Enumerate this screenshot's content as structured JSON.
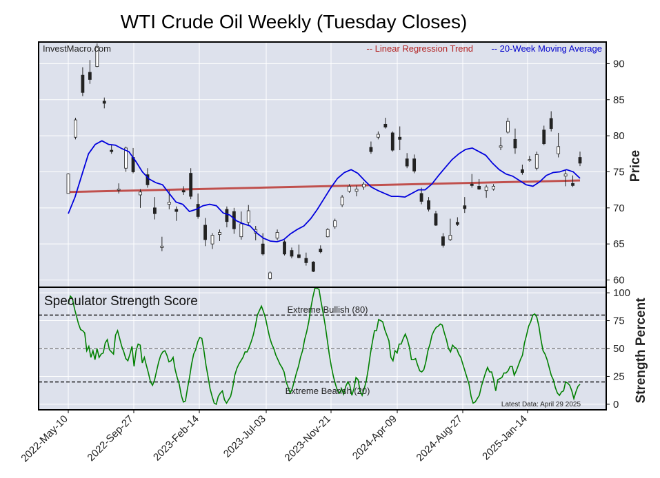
{
  "chart_data": [
    {
      "type": "candlestick",
      "title": "WTI Crude Oil Weekly (Tuesday Closes)",
      "watermark": "InvestMacro.com",
      "ylabel": "Price",
      "ylim": [
        59,
        93
      ],
      "yticks": [
        60,
        65,
        70,
        75,
        80,
        85,
        90
      ],
      "grid": true,
      "x_tick_labels": [
        "2022-May-10",
        "2022-Sep-27",
        "2023-Feb-14",
        "2023-Jul-03",
        "2023-Nov-21",
        "2024-Apr-09",
        "2024-Aug-27",
        "2025-Jan-14"
      ],
      "legend": [
        {
          "label": "-- Linear Regression Trend",
          "color": "#b22222"
        },
        {
          "label": "-- 20-Week Moving Average",
          "color": "#0000cc"
        }
      ],
      "legend_position": "top-right",
      "series_colors": {
        "regression": "#c0504d",
        "moving_average": "#0000dd",
        "up": "#ffffff",
        "down": "#222222"
      },
      "regression": {
        "start": 72.2,
        "end": 73.8
      },
      "moving_average": [
        69.2,
        71.5,
        74.5,
        77.5,
        78.8,
        79.3,
        78.8,
        78.7,
        78.2,
        77.8,
        76.5,
        75.0,
        74.0,
        73.5,
        73.2,
        72.0,
        70.8,
        70.5,
        69.5,
        69.8,
        70.3,
        70.5,
        70.3,
        69.3,
        69.0,
        68.2,
        67.8,
        67.5,
        66.5,
        65.8,
        65.4,
        65.3,
        65.6,
        66.4,
        67.0,
        67.5,
        68.5,
        69.8,
        71.3,
        72.8,
        74.1,
        74.9,
        75.3,
        74.8,
        73.8,
        72.9,
        72.4,
        72.0,
        71.6,
        71.6,
        71.5,
        72.0,
        72.5,
        72.5,
        73.3,
        74.5,
        75.6,
        76.7,
        77.5,
        78.1,
        78.3,
        77.8,
        77.3,
        76.2,
        75.3,
        74.7,
        74.4,
        73.8,
        73.2,
        73.0,
        73.6,
        74.5,
        74.9,
        75.0,
        75.3,
        75.0,
        74.1
      ],
      "candles": [
        {
          "o": 72.0,
          "h": 74.8,
          "l": 72.0,
          "c": 74.7
        },
        {
          "o": 79.8,
          "h": 82.5,
          "l": 79.5,
          "c": 82.2
        },
        {
          "o": 88.4,
          "h": 89.5,
          "l": 85.5,
          "c": 86.0
        },
        {
          "o": 88.8,
          "h": 90.5,
          "l": 87.2,
          "c": 87.8
        },
        {
          "o": 89.6,
          "h": 92.8,
          "l": 89.5,
          "c": 92.4
        },
        {
          "o": 84.8,
          "h": 85.3,
          "l": 83.8,
          "c": 84.5
        },
        {
          "o": 78.0,
          "h": 78.8,
          "l": 77.5,
          "c": 77.8
        },
        {
          "o": 72.5,
          "h": 73.4,
          "l": 72.0,
          "c": 72.6
        },
        {
          "o": 75.5,
          "h": 78.5,
          "l": 75.0,
          "c": 78.3
        },
        {
          "o": 77.0,
          "h": 78.3,
          "l": 74.8,
          "c": 75.0
        },
        {
          "o": 71.8,
          "h": 72.6,
          "l": 70.0,
          "c": 72.2
        },
        {
          "o": 74.6,
          "h": 75.5,
          "l": 72.8,
          "c": 73.2
        },
        {
          "o": 70.0,
          "h": 71.5,
          "l": 68.4,
          "c": 69.2
        },
        {
          "o": 64.5,
          "h": 66.0,
          "l": 64.0,
          "c": 64.7
        },
        {
          "o": 70.5,
          "h": 72.4,
          "l": 69.8,
          "c": 70.8
        },
        {
          "o": 69.8,
          "h": 70.2,
          "l": 68.2,
          "c": 69.5
        },
        {
          "o": 72.4,
          "h": 73.0,
          "l": 71.8,
          "c": 72.2
        },
        {
          "o": 74.8,
          "h": 75.5,
          "l": 71.2,
          "c": 71.6
        },
        {
          "o": 70.5,
          "h": 72.0,
          "l": 68.5,
          "c": 68.8
        },
        {
          "o": 67.6,
          "h": 68.6,
          "l": 64.7,
          "c": 65.6
        },
        {
          "o": 65.0,
          "h": 66.5,
          "l": 64.3,
          "c": 66.2
        },
        {
          "o": 66.3,
          "h": 67.0,
          "l": 65.4,
          "c": 66.6
        },
        {
          "o": 69.8,
          "h": 70.2,
          "l": 67.3,
          "c": 68.1
        },
        {
          "o": 69.5,
          "h": 70.0,
          "l": 66.4,
          "c": 67.1
        },
        {
          "o": 66.0,
          "h": 69.5,
          "l": 65.6,
          "c": 67.8
        },
        {
          "o": 68.0,
          "h": 70.4,
          "l": 67.5,
          "c": 69.6
        },
        {
          "o": 66.5,
          "h": 67.5,
          "l": 65.5,
          "c": 67.0
        },
        {
          "o": 65.0,
          "h": 66.5,
          "l": 63.4,
          "c": 63.6
        },
        {
          "o": 60.2,
          "h": 61.2,
          "l": 60.0,
          "c": 61.0
        },
        {
          "o": 65.8,
          "h": 67.0,
          "l": 65.5,
          "c": 66.6
        },
        {
          "o": 65.3,
          "h": 65.5,
          "l": 63.4,
          "c": 63.6
        },
        {
          "o": 64.1,
          "h": 64.5,
          "l": 63.0,
          "c": 63.3
        },
        {
          "o": 63.5,
          "h": 64.9,
          "l": 63.0,
          "c": 63.1
        },
        {
          "o": 63.0,
          "h": 63.8,
          "l": 62.0,
          "c": 62.4
        },
        {
          "o": 62.5,
          "h": 62.6,
          "l": 61.1,
          "c": 61.2
        },
        {
          "o": 64.3,
          "h": 64.8,
          "l": 63.7,
          "c": 63.9
        },
        {
          "o": 66.0,
          "h": 67.2,
          "l": 65.9,
          "c": 67.0
        },
        {
          "o": 67.4,
          "h": 68.5,
          "l": 67.1,
          "c": 68.2
        },
        {
          "o": 70.4,
          "h": 71.8,
          "l": 70.1,
          "c": 71.5
        },
        {
          "o": 72.3,
          "h": 73.3,
          "l": 72.1,
          "c": 73.0
        },
        {
          "o": 72.3,
          "h": 73.1,
          "l": 71.6,
          "c": 72.6
        },
        {
          "o": 72.9,
          "h": 73.6,
          "l": 72.5,
          "c": 73.3
        },
        {
          "o": 78.4,
          "h": 79.2,
          "l": 77.5,
          "c": 77.8
        },
        {
          "o": 79.8,
          "h": 80.6,
          "l": 79.5,
          "c": 80.2
        },
        {
          "o": 81.6,
          "h": 82.5,
          "l": 81.0,
          "c": 81.2
        },
        {
          "o": 80.4,
          "h": 80.6,
          "l": 77.8,
          "c": 78.0
        },
        {
          "o": 79.8,
          "h": 81.3,
          "l": 78.0,
          "c": 79.5
        },
        {
          "o": 76.8,
          "h": 77.6,
          "l": 75.5,
          "c": 75.8
        },
        {
          "o": 76.8,
          "h": 77.4,
          "l": 74.8,
          "c": 75.1
        },
        {
          "o": 72.0,
          "h": 72.8,
          "l": 70.5,
          "c": 70.9
        },
        {
          "o": 71.0,
          "h": 71.5,
          "l": 69.5,
          "c": 69.8
        },
        {
          "o": 69.2,
          "h": 69.6,
          "l": 67.5,
          "c": 67.6
        },
        {
          "o": 66.0,
          "h": 66.5,
          "l": 64.5,
          "c": 64.8
        },
        {
          "o": 65.6,
          "h": 68.5,
          "l": 65.4,
          "c": 66.2
        },
        {
          "o": 68.0,
          "h": 68.7,
          "l": 67.5,
          "c": 67.7
        },
        {
          "o": 70.3,
          "h": 71.5,
          "l": 69.3,
          "c": 69.9
        },
        {
          "o": 73.3,
          "h": 74.7,
          "l": 72.8,
          "c": 73.1
        },
        {
          "o": 73.0,
          "h": 74.0,
          "l": 72.5,
          "c": 72.6
        },
        {
          "o": 72.4,
          "h": 73.2,
          "l": 71.4,
          "c": 72.9
        },
        {
          "o": 72.6,
          "h": 73.3,
          "l": 72.4,
          "c": 73.0
        },
        {
          "o": 78.4,
          "h": 79.8,
          "l": 78.0,
          "c": 78.6
        },
        {
          "o": 80.5,
          "h": 82.5,
          "l": 80.3,
          "c": 82.0
        },
        {
          "o": 79.5,
          "h": 81.0,
          "l": 77.5,
          "c": 78.3
        },
        {
          "o": 75.3,
          "h": 76.0,
          "l": 74.6,
          "c": 74.9
        },
        {
          "o": 76.7,
          "h": 77.2,
          "l": 76.4,
          "c": 76.7
        },
        {
          "o": 75.5,
          "h": 77.8,
          "l": 75.2,
          "c": 77.4
        },
        {
          "o": 80.8,
          "h": 81.4,
          "l": 78.7,
          "c": 78.9
        },
        {
          "o": 82.4,
          "h": 83.4,
          "l": 80.6,
          "c": 81.0
        },
        {
          "o": 77.5,
          "h": 80.4,
          "l": 77.0,
          "c": 78.5
        },
        {
          "o": 74.4,
          "h": 75.3,
          "l": 73.0,
          "c": 74.7
        },
        {
          "o": 73.4,
          "h": 74.5,
          "l": 72.9,
          "c": 73.1
        },
        {
          "o": 77.0,
          "h": 77.8,
          "l": 75.8,
          "c": 76.2
        }
      ]
    },
    {
      "type": "line",
      "title": "Speculator Strength Score",
      "ylabel": "Strength Percent",
      "ylim": [
        -5,
        105
      ],
      "yticks": [
        0,
        25,
        50,
        75,
        100
      ],
      "grid": true,
      "line_color": "#008000",
      "reference_lines": [
        {
          "label": "Extreme Bullish (80)",
          "value": 80
        },
        {
          "label": "Extreme Bearish (20)",
          "value": 20
        }
      ],
      "data_note": "Latest Data: April 29 2025",
      "values": [
        90,
        97,
        95,
        86,
        79,
        72,
        67,
        66,
        64,
        48,
        52,
        42,
        48,
        40,
        50,
        42,
        45,
        46,
        55,
        58,
        49,
        47,
        45,
        62,
        66,
        59,
        52,
        47,
        41,
        39,
        45,
        52,
        34,
        48,
        54,
        53,
        37,
        42,
        35,
        28,
        20,
        17,
        22,
        30,
        38,
        44,
        47,
        48,
        44,
        38,
        39,
        42,
        31,
        24,
        18,
        8,
        2,
        3,
        14,
        24,
        36,
        45,
        49,
        56,
        60,
        59,
        48,
        35,
        25,
        14,
        7,
        1,
        0,
        7,
        10,
        12,
        4,
        1,
        4,
        7,
        15,
        26,
        32,
        36,
        39,
        42,
        47,
        47,
        51,
        56,
        62,
        70,
        80,
        84,
        88,
        83,
        77,
        68,
        60,
        54,
        50,
        44,
        40,
        36,
        33,
        29,
        20,
        15,
        10,
        14,
        21,
        28,
        34,
        42,
        48,
        58,
        65,
        74,
        86,
        96,
        104,
        104,
        103,
        92,
        82,
        71,
        58,
        45,
        34,
        25,
        18,
        12,
        10,
        14,
        9,
        16,
        20,
        17,
        8,
        14,
        24,
        22,
        12,
        8,
        14,
        21,
        32,
        45,
        56,
        66,
        66,
        76,
        75,
        74,
        67,
        62,
        57,
        42,
        39,
        48,
        46,
        54,
        54,
        59,
        63,
        58,
        51,
        40,
        40,
        41,
        35,
        30,
        29,
        31,
        38,
        48,
        54,
        62,
        66,
        69,
        70,
        72,
        71,
        64,
        58,
        50,
        47,
        53,
        51,
        50,
        45,
        42,
        36,
        30,
        24,
        18,
        7,
        1,
        2,
        5,
        8,
        16,
        22,
        28,
        33,
        29,
        29,
        22,
        12,
        22,
        23,
        24,
        28,
        28,
        30,
        34,
        34,
        26,
        30,
        35,
        40,
        44,
        55,
        62,
        70,
        74,
        80,
        81,
        78,
        70,
        58,
        48,
        45,
        40,
        33,
        26,
        22,
        15,
        10,
        8,
        11,
        12,
        20,
        19,
        17,
        12,
        5,
        11,
        16,
        18
      ]
    }
  ]
}
